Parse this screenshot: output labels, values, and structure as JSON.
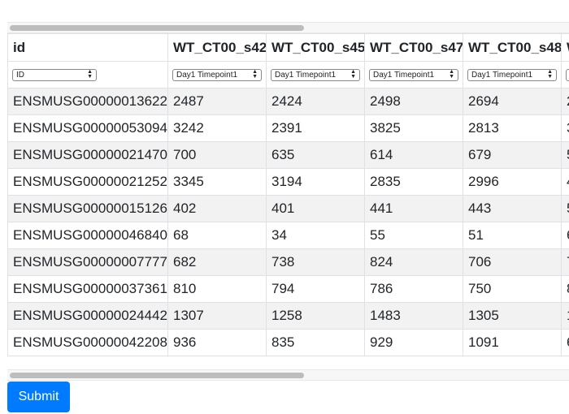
{
  "table": {
    "columns": [
      "id",
      "WT_CT00_s42",
      "WT_CT00_s45",
      "WT_CT00_s47",
      "WT_CT00_s48",
      "W"
    ],
    "selects": [
      "ID",
      "Day1 Timepoint1",
      "Day1 Timepoint1",
      "Day1 Timepoint1",
      "Day1 Timepoint1",
      ""
    ],
    "rows": [
      [
        "ENSMUSG00000013622",
        "2487",
        "2424",
        "2498",
        "2694",
        "2"
      ],
      [
        "ENSMUSG00000053094",
        "3242",
        "2391",
        "3825",
        "2813",
        "3"
      ],
      [
        "ENSMUSG00000021470",
        "700",
        "635",
        "614",
        "679",
        "5"
      ],
      [
        "ENSMUSG00000021252",
        "3345",
        "3194",
        "2835",
        "2996",
        "4"
      ],
      [
        "ENSMUSG00000015126",
        "402",
        "401",
        "441",
        "443",
        "5"
      ],
      [
        "ENSMUSG00000046840",
        "68",
        "34",
        "55",
        "51",
        "6"
      ],
      [
        "ENSMUSG00000007777",
        "682",
        "738",
        "824",
        "706",
        "7"
      ],
      [
        "ENSMUSG00000037361",
        "810",
        "794",
        "786",
        "750",
        "8"
      ],
      [
        "ENSMUSG00000024442",
        "1307",
        "1258",
        "1483",
        "1305",
        "1"
      ],
      [
        "ENSMUSG00000042208",
        "936",
        "835",
        "929",
        "1091",
        "6"
      ]
    ]
  },
  "submit_label": "Submit",
  "colors": {
    "accent": "#007bff",
    "stripe": "#f2f2f2"
  }
}
